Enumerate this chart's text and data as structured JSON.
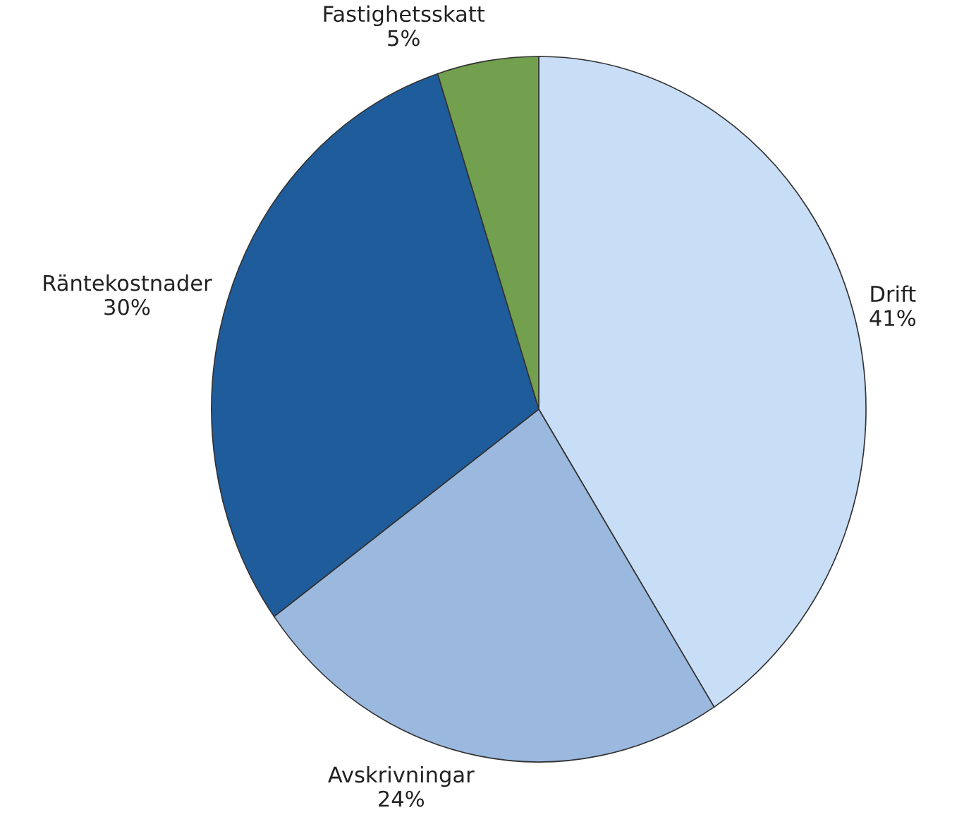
{
  "chart_data": {
    "type": "pie",
    "categories": [
      "Drift",
      "Avskrivningar",
      "Räntekostnader",
      "Fastighetsskatt"
    ],
    "values": [
      41,
      24,
      30,
      5
    ],
    "value_labels": [
      "41%",
      "24%",
      "30%",
      "5%"
    ],
    "colors": [
      "#c8ddf6",
      "#9bb8de",
      "#1f5c9c",
      "#72a04f"
    ]
  }
}
